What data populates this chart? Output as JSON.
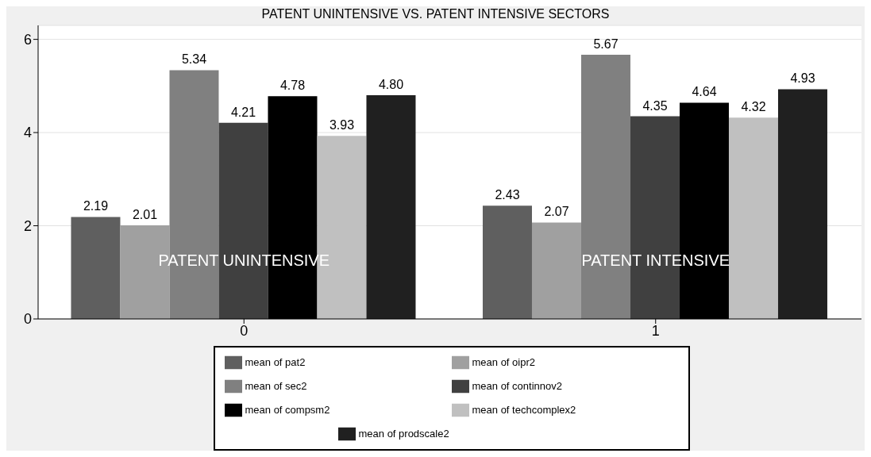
{
  "chart_data": {
    "type": "bar",
    "title": "PATENT UNINTENSIVE VS. PATENT INTENSIVE SECTORS",
    "categories": [
      "0",
      "1"
    ],
    "series": [
      {
        "name": "mean of pat2",
        "color": "#5f5f5f",
        "values": [
          2.19,
          2.43
        ],
        "value_labels": [
          "2.19",
          "2.43"
        ]
      },
      {
        "name": "mean of oipr2",
        "color": "#a0a0a0",
        "values": [
          2.01,
          2.07
        ],
        "value_labels": [
          "2.01",
          "2.07"
        ]
      },
      {
        "name": "mean of sec2",
        "color": "#808080",
        "values": [
          5.34,
          5.67
        ],
        "value_labels": [
          "5.34",
          "5.67"
        ]
      },
      {
        "name": "mean of continnov2",
        "color": "#404040",
        "values": [
          4.21,
          4.35
        ],
        "value_labels": [
          "4.21",
          "4.35"
        ]
      },
      {
        "name": "mean of compsm2",
        "color": "#000000",
        "values": [
          4.78,
          4.64
        ],
        "value_labels": [
          "4.78",
          "4.64"
        ]
      },
      {
        "name": "mean of techcomplex2",
        "color": "#c0c0c0",
        "values": [
          3.93,
          4.32
        ],
        "value_labels": [
          "3.93",
          "4.32"
        ]
      },
      {
        "name": "mean of prodscale2",
        "color": "#202020",
        "values": [
          4.8,
          4.93
        ],
        "value_labels": [
          "4.80",
          "4.93"
        ]
      }
    ],
    "annotations": [
      "PATENT UNINTENSIVE",
      "PATENT INTENSIVE"
    ],
    "ylim": [
      0,
      6.3
    ],
    "yticks": [
      0,
      2,
      4,
      6
    ],
    "grid": "y",
    "legend": "bottom"
  }
}
